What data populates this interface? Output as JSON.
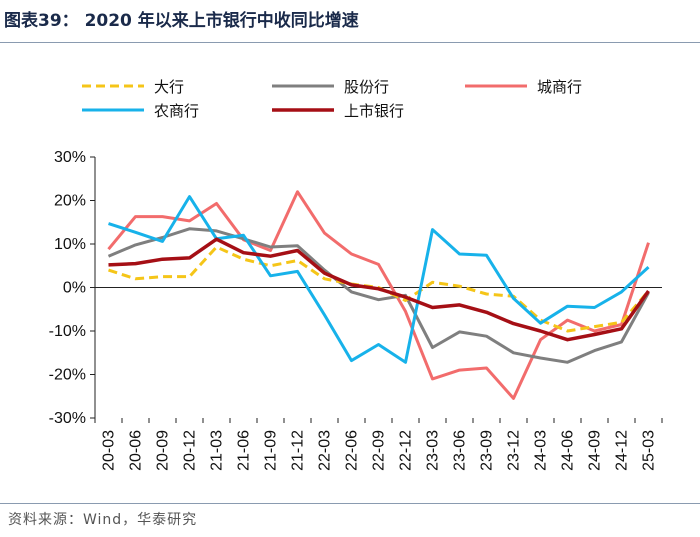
{
  "header": {
    "title": "图表39：  2020 年以来上市银行中收同比增速"
  },
  "footer": {
    "source": "资料来源：Wind，华泰研究"
  },
  "chart_data": {
    "type": "line",
    "title": "2020 年以来上市银行中收同比增速",
    "xlabel": "",
    "ylabel": "",
    "ylim": [
      -0.3,
      0.3
    ],
    "yticks": [
      "30%",
      "20%",
      "10%",
      "0%",
      "-10%",
      "-20%",
      "-30%"
    ],
    "ytick_values": [
      0.3,
      0.2,
      0.1,
      0.0,
      -0.1,
      -0.2,
      -0.3
    ],
    "categories": [
      "20-03",
      "20-06",
      "20-09",
      "20-12",
      "21-03",
      "21-06",
      "21-09",
      "21-12",
      "22-03",
      "22-06",
      "22-09",
      "22-12",
      "23-03",
      "23-06",
      "23-09",
      "23-12",
      "24-03",
      "24-06",
      "24-09",
      "24-12",
      "25-03"
    ],
    "legend_position": "top",
    "series": [
      {
        "name": "大行",
        "color": "#F5C518",
        "dash": true,
        "values": [
          0.04,
          0.02,
          0.025,
          0.025,
          0.093,
          0.065,
          0.05,
          0.062,
          0.02,
          0.008,
          0.0,
          -0.03,
          0.012,
          0.003,
          -0.015,
          -0.02,
          -0.075,
          -0.1,
          -0.09,
          -0.08,
          -0.008
        ]
      },
      {
        "name": "股份行",
        "color": "#7F7F7F",
        "dash": false,
        "values": [
          0.072,
          0.098,
          0.115,
          0.135,
          0.13,
          0.112,
          0.093,
          0.096,
          0.04,
          -0.01,
          -0.028,
          -0.018,
          -0.138,
          -0.102,
          -0.112,
          -0.15,
          -0.162,
          -0.172,
          -0.145,
          -0.125,
          -0.012
        ]
      },
      {
        "name": "城商行",
        "color": "#F26C6C",
        "dash": false,
        "values": [
          0.088,
          0.163,
          0.163,
          0.153,
          0.193,
          0.11,
          0.085,
          0.22,
          0.125,
          0.077,
          0.053,
          -0.055,
          -0.21,
          -0.19,
          -0.185,
          -0.255,
          -0.12,
          -0.075,
          -0.1,
          -0.085,
          0.103
        ]
      },
      {
        "name": "农商行",
        "color": "#17B2EA",
        "dash": false,
        "values": [
          0.147,
          0.127,
          0.106,
          0.209,
          0.112,
          0.12,
          0.027,
          0.037,
          -0.063,
          -0.168,
          -0.131,
          -0.172,
          0.133,
          0.077,
          0.074,
          -0.025,
          -0.082,
          -0.043,
          -0.046,
          -0.01,
          0.047
        ]
      },
      {
        "name": "上市银行",
        "color": "#A50F15",
        "dash": false,
        "values": [
          0.052,
          0.055,
          0.065,
          0.068,
          0.111,
          0.08,
          0.072,
          0.085,
          0.033,
          0.006,
          -0.003,
          -0.022,
          -0.046,
          -0.04,
          -0.057,
          -0.083,
          -0.1,
          -0.12,
          -0.108,
          -0.095,
          -0.008
        ]
      }
    ]
  }
}
